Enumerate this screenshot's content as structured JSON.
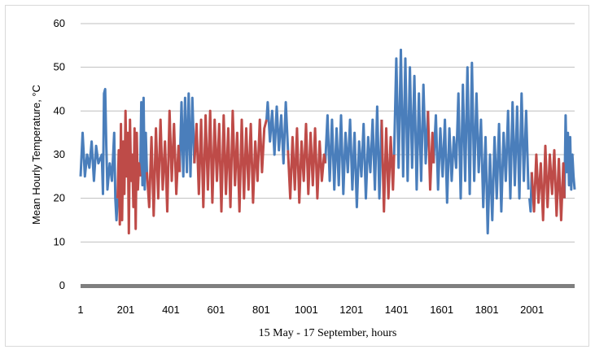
{
  "chart_data": {
    "type": "line",
    "xlabel": "15 May - 17 September, hours",
    "ylabel": "Mean Hourly Temperature, °C",
    "ylim": [
      0,
      60
    ],
    "xlim": [
      1,
      2190
    ],
    "yticks": [
      0,
      10,
      20,
      30,
      40,
      50,
      60
    ],
    "xticks": [
      1,
      201,
      401,
      601,
      801,
      1001,
      1201,
      1401,
      1601,
      1801,
      2001
    ],
    "grid": "horizontal",
    "colors": {
      "blue": "#4a7ebb",
      "red": "#be4b48",
      "grid": "#bfbfbf",
      "baseline": "#7f7f7f"
    },
    "series": [
      {
        "color": "blue",
        "segments": [
          {
            "x": [
              1,
              10,
              20,
              30,
              40,
              50,
              60,
              70,
              80,
              95,
              100,
              105,
              110,
              115,
              120,
              130,
              140,
              150,
              155,
              160,
              165
            ],
            "y": [
              25,
              35,
              25,
              30,
              27,
              33,
              24,
              32,
              28,
              30,
              21,
              44,
              45,
              32,
              22,
              28,
              24,
              35,
              20,
              15,
              20
            ]
          },
          {
            "x": [
              265,
              270,
              275,
              280,
              285,
              290,
              295
            ],
            "y": [
              25,
              42,
              23,
              43,
              22,
              35,
              26
            ]
          },
          {
            "x": [
              440,
              448,
              456,
              464,
              472,
              480,
              488,
              496,
              505
            ],
            "y": [
              26,
              42,
              25,
              43,
              26,
              44,
              25,
              43,
              28
            ]
          },
          {
            "x": [
              825,
              830,
              840,
              850,
              860,
              870,
              880,
              890,
              900,
              910,
              920
            ],
            "y": [
              38,
              42,
              33,
              40,
              30,
              41,
              31,
              39,
              28,
              42,
              31
            ]
          },
          {
            "x": [
              1085,
              1095,
              1105,
              1115,
              1125,
              1135,
              1145,
              1155,
              1165,
              1175,
              1185,
              1195,
              1205,
              1215,
              1225,
              1235,
              1245,
              1255,
              1265,
              1275,
              1285,
              1295,
              1305,
              1315,
              1325,
              1335
            ],
            "y": [
              28,
              39,
              24,
              38,
              22,
              36,
              23,
              39,
              21,
              35,
              26,
              38,
              22,
              35,
              18,
              33,
              25,
              37,
              20,
              34,
              26,
              38,
              22,
              41,
              20,
              38
            ]
          },
          {
            "x": [
              1390,
              1400,
              1410,
              1420,
              1430,
              1440,
              1450,
              1460,
              1470,
              1480,
              1490,
              1500,
              1510,
              1520,
              1530,
              1540
            ],
            "y": [
              30,
              52,
              27,
              54,
              25,
              52,
              24,
              50,
              27,
              48,
              22,
              44,
              24,
              46,
              28,
              40
            ]
          },
          {
            "x": [
              1565,
              1575,
              1585,
              1595,
              1605,
              1615,
              1625,
              1635,
              1645,
              1655,
              1665,
              1675,
              1685,
              1695,
              1705,
              1715,
              1725,
              1735,
              1745,
              1755,
              1765,
              1775,
              1785,
              1795,
              1805,
              1815,
              1825,
              1835,
              1845,
              1855,
              1865,
              1875,
              1885,
              1895,
              1905,
              1915,
              1925,
              1935,
              1945,
              1955,
              1965,
              1975,
              1985
            ],
            "y": [
              28,
              39,
              22,
              36,
              25,
              38,
              19,
              36,
              24,
              34,
              27,
              44,
              20,
              46,
              24,
              50,
              21,
              51,
              24,
              44,
              26,
              38,
              18,
              34,
              12,
              30,
              15,
              34,
              20,
              37,
              17,
              35,
              24,
              40,
              20,
              42,
              23,
              41,
              20,
              44,
              24,
              40,
              22
            ]
          },
          {
            "x": [
              1990,
              1995,
              2000
            ],
            "y": [
              20,
              17,
              26
            ]
          },
          {
            "x": [
              2145,
              2150,
              2155,
              2160,
              2165,
              2170,
              2175,
              2180,
              2185,
              2190
            ],
            "y": [
              20,
              39,
              26,
              35,
              23,
              34,
              22,
              30,
              25,
              22
            ]
          }
        ]
      },
      {
        "color": "red",
        "segments": [
          {
            "x": [
              165,
              170,
              175,
              180,
              185,
              190,
              195,
              200,
              205,
              210,
              215,
              220,
              225,
              230,
              235,
              240,
              245,
              250,
              255,
              260,
              265
            ],
            "y": [
              20,
              31,
              14,
              37,
              15,
              33,
              21,
              40,
              25,
              35,
              12,
              38,
              24,
              30,
              18,
              36,
              13,
              35,
              22,
              28,
              25
            ]
          },
          {
            "x": [
              295,
              305,
              315,
              325,
              335,
              345,
              355,
              365,
              375,
              385,
              395,
              405,
              415,
              425,
              435,
              440
            ],
            "y": [
              26,
              18,
              34,
              16,
              36,
              20,
              38,
              22,
              33,
              17,
              40,
              24,
              37,
              21,
              32,
              26
            ]
          },
          {
            "x": [
              505,
              515,
              525,
              535,
              545,
              555,
              565,
              575,
              585,
              595,
              605,
              615,
              625,
              635,
              645,
              655,
              665,
              675,
              685,
              695,
              705,
              715,
              725,
              735,
              745,
              755,
              765,
              775,
              785,
              795,
              805,
              815,
              825
            ],
            "y": [
              28,
              37,
              21,
              38,
              18,
              39,
              22,
              40,
              19,
              38,
              24,
              37,
              17,
              39,
              21,
              36,
              18,
              40,
              23,
              35,
              17,
              38,
              20,
              36,
              22,
              37,
              19,
              33,
              24,
              38,
              26,
              36,
              38
            ]
          },
          {
            "x": [
              920,
              930,
              940,
              950,
              960,
              970,
              980,
              990,
              1000,
              1010,
              1020,
              1030,
              1040,
              1050,
              1060,
              1070,
              1080,
              1085
            ],
            "y": [
              31,
              20,
              34,
              22,
              36,
              19,
              33,
              24,
              37,
              21,
              35,
              23,
              36,
              20,
              33,
              24,
              30,
              28
            ]
          },
          {
            "x": [
              1335,
              1345,
              1355,
              1365,
              1375,
              1385,
              1390
            ],
            "y": [
              38,
              17,
              36,
              20,
              34,
              22,
              30
            ]
          },
          {
            "x": [
              1540,
              1550,
              1560,
              1565
            ],
            "y": [
              40,
              22,
              35,
              28
            ]
          },
          {
            "x": [
              2000,
              2010,
              2020,
              2030,
              2040,
              2050,
              2060,
              2070,
              2080,
              2090,
              2100,
              2110,
              2120,
              2130,
              2140,
              2145
            ],
            "y": [
              26,
              17,
              30,
              19,
              28,
              15,
              32,
              18,
              30,
              21,
              31,
              16,
              29,
              15,
              28,
              20
            ]
          }
        ]
      }
    ]
  }
}
